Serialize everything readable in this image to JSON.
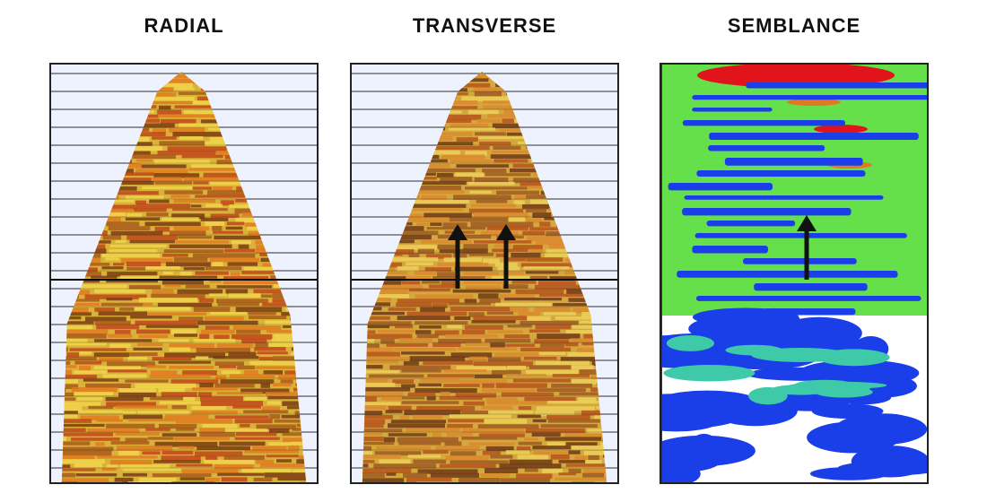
{
  "panels": [
    {
      "title": "RADIAL",
      "colors": {
        "base": "#d9b23a",
        "bands": [
          "#c0471a",
          "#7a3b12",
          "#f0d54a",
          "#e07a20",
          "#a85a1a"
        ]
      }
    },
    {
      "title": "TRANSVERSE",
      "colors": {
        "base": "#d4a83c",
        "bands": [
          "#b5531c",
          "#6e3a16",
          "#ecd058",
          "#d98a2e",
          "#9c5a22"
        ]
      },
      "arrows": 2
    },
    {
      "title": "SEMBLANCE",
      "colors": {
        "background": "#ffffff",
        "high": "#e0141a",
        "mid": "#66e04a",
        "low": "#1a3ee8",
        "mid2": "#3ec9a8"
      },
      "arrows": 1
    }
  ]
}
